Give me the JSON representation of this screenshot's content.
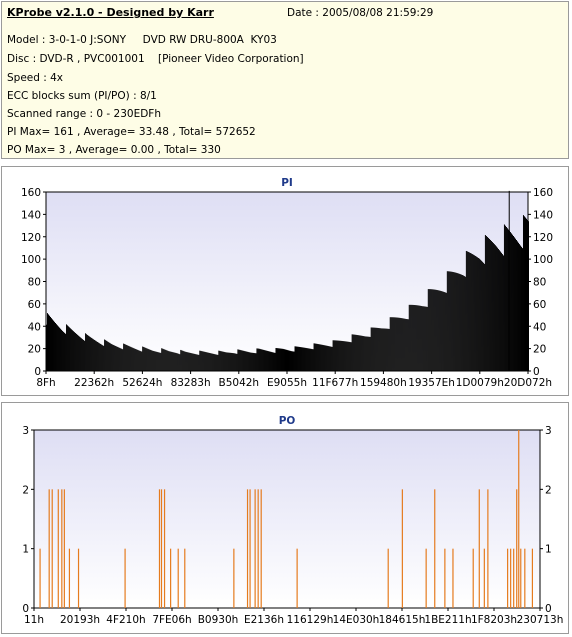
{
  "report": {
    "title": "KProbe v2.1.0 - Designed by Karr",
    "date": "Date : 2005/08/08 21:59:29",
    "lines": [
      "Model : 3-0-1-0 J:SONY     DVD RW DRU-800A  KY03",
      "Disc : DVD-R , PVC001001    [Pioneer Video Corporation]",
      "Speed : 4x",
      "ECC blocks sum (PI/PO) : 8/1",
      "Scanned range : 0 - 230EDFh",
      "PI Max= 161 , Average= 33.48 , Total= 572652",
      "PO Max= 3 , Average= 0.00 , Total= 330"
    ]
  },
  "colors": {
    "pi_bar": "#000000",
    "po_line": "#e57b1e",
    "plot_bg_top": "#dedef4",
    "plot_bg_bottom": "#ffffff",
    "title_color": "#1f3a8a"
  },
  "chart_data": [
    {
      "type": "bar",
      "title": "PI",
      "ylim": [
        0,
        160
      ],
      "y_ticks": [
        0,
        20,
        40,
        60,
        80,
        100,
        120,
        140,
        160
      ],
      "x_tick_labels": [
        "8Fh",
        "22362h",
        "52624h",
        "83283h",
        "B5042h",
        "E9055h",
        "11F677h",
        "159480h",
        "19357Eh",
        "1D0079h",
        "20D072h"
      ],
      "grid": false,
      "series": [
        {
          "values": [
            46,
            42,
            38,
            35,
            32,
            29,
            27,
            25,
            23,
            22,
            21,
            20,
            19,
            18,
            18,
            17,
            17,
            16,
            16,
            16,
            16,
            16,
            16,
            17,
            17,
            17,
            18,
            18,
            18,
            19,
            19,
            20,
            21,
            22,
            23,
            24,
            26,
            28,
            30,
            32,
            35,
            38,
            42,
            46,
            50,
            55,
            60,
            66,
            72,
            78,
            85,
            92,
            98,
            104,
            108,
            112,
            115,
            118,
            121,
            125
          ],
          "max_marker": {
            "x_fraction": 0.96,
            "value": 161
          }
        }
      ]
    },
    {
      "type": "line",
      "title": "PO",
      "ylim": [
        0,
        3
      ],
      "y_ticks": [
        0,
        1,
        2,
        3
      ],
      "x_tick_labels": [
        "11h",
        "20193h",
        "4F210h",
        "7FE06h",
        "B0930h",
        "E2136h",
        "116129h",
        "14E030h",
        "184615h",
        "1BE211h",
        "1F8203h",
        "230713h"
      ],
      "grid": false,
      "series": [
        {
          "spikes": [
            {
              "x": 0.012,
              "value": 1
            },
            {
              "x": 0.03,
              "value": 2
            },
            {
              "x": 0.036,
              "value": 2
            },
            {
              "x": 0.048,
              "value": 2
            },
            {
              "x": 0.055,
              "value": 2
            },
            {
              "x": 0.06,
              "value": 2
            },
            {
              "x": 0.07,
              "value": 1
            },
            {
              "x": 0.088,
              "value": 1
            },
            {
              "x": 0.18,
              "value": 1
            },
            {
              "x": 0.248,
              "value": 2
            },
            {
              "x": 0.252,
              "value": 2
            },
            {
              "x": 0.258,
              "value": 2
            },
            {
              "x": 0.27,
              "value": 1
            },
            {
              "x": 0.285,
              "value": 1
            },
            {
              "x": 0.298,
              "value": 1
            },
            {
              "x": 0.395,
              "value": 1
            },
            {
              "x": 0.422,
              "value": 2
            },
            {
              "x": 0.427,
              "value": 2
            },
            {
              "x": 0.437,
              "value": 2
            },
            {
              "x": 0.443,
              "value": 2
            },
            {
              "x": 0.449,
              "value": 2
            },
            {
              "x": 0.52,
              "value": 1
            },
            {
              "x": 0.7,
              "value": 1
            },
            {
              "x": 0.728,
              "value": 2
            },
            {
              "x": 0.775,
              "value": 1
            },
            {
              "x": 0.792,
              "value": 2
            },
            {
              "x": 0.812,
              "value": 1
            },
            {
              "x": 0.828,
              "value": 1
            },
            {
              "x": 0.868,
              "value": 1
            },
            {
              "x": 0.88,
              "value": 2
            },
            {
              "x": 0.89,
              "value": 1
            },
            {
              "x": 0.897,
              "value": 2
            },
            {
              "x": 0.936,
              "value": 1
            },
            {
              "x": 0.942,
              "value": 1
            },
            {
              "x": 0.948,
              "value": 1
            },
            {
              "x": 0.954,
              "value": 2
            },
            {
              "x": 0.958,
              "value": 3
            },
            {
              "x": 0.962,
              "value": 1
            },
            {
              "x": 0.97,
              "value": 1
            },
            {
              "x": 0.985,
              "value": 1
            }
          ]
        }
      ]
    }
  ]
}
